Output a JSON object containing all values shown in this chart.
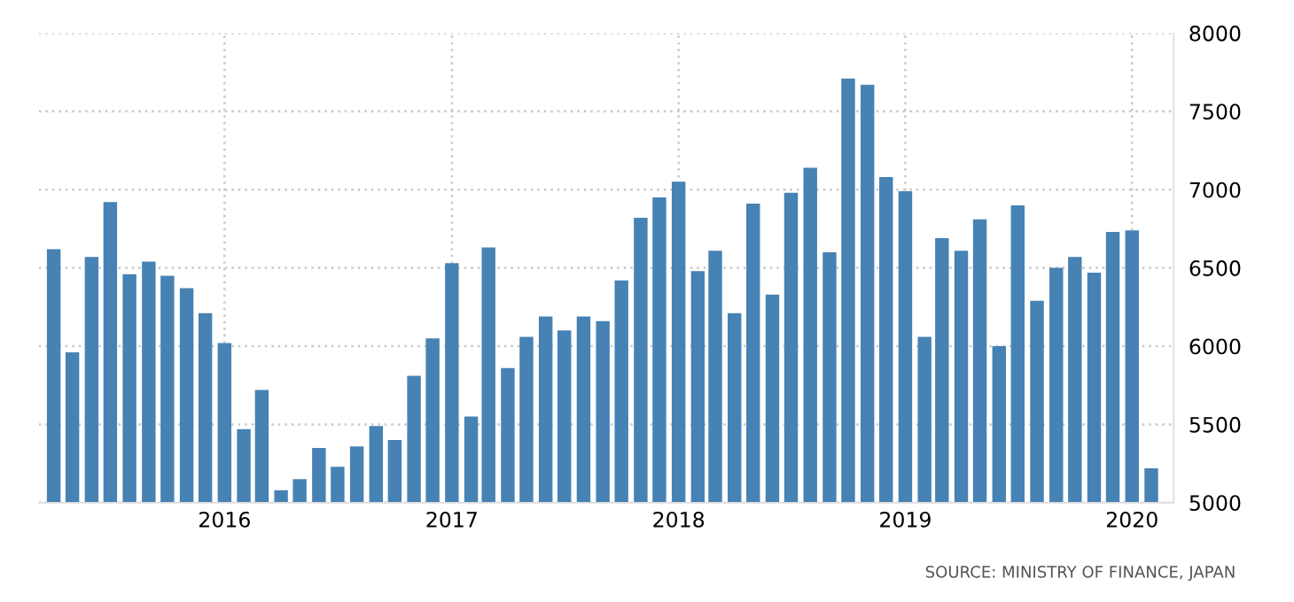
{
  "chart_data": {
    "type": "bar",
    "x": [
      "2015-04",
      "2015-05",
      "2015-06",
      "2015-07",
      "2015-08",
      "2015-09",
      "2015-10",
      "2015-11",
      "2015-12",
      "2016-01",
      "2016-02",
      "2016-03",
      "2016-04",
      "2016-05",
      "2016-06",
      "2016-07",
      "2016-08",
      "2016-09",
      "2016-10",
      "2016-11",
      "2016-12",
      "2017-01",
      "2017-02",
      "2017-03",
      "2017-04",
      "2017-05",
      "2017-06",
      "2017-07",
      "2017-08",
      "2017-09",
      "2017-10",
      "2017-11",
      "2017-12",
      "2018-01",
      "2018-02",
      "2018-03",
      "2018-04",
      "2018-05",
      "2018-06",
      "2018-07",
      "2018-08",
      "2018-09",
      "2018-10",
      "2018-11",
      "2018-12",
      "2019-01",
      "2019-02",
      "2019-03",
      "2019-04",
      "2019-05",
      "2019-06",
      "2019-07",
      "2019-08",
      "2019-09",
      "2019-10",
      "2019-11",
      "2019-12",
      "2020-01",
      "2020-02"
    ],
    "series": [
      {
        "color": "#4682b4",
        "values": [
          6620,
          5960,
          6570,
          6920,
          6460,
          6540,
          6450,
          6370,
          6210,
          6020,
          5470,
          5720,
          5080,
          5150,
          5350,
          5230,
          5360,
          5490,
          5400,
          5810,
          6050,
          6530,
          5550,
          6630,
          5860,
          6060,
          6190,
          6100,
          6190,
          6160,
          6420,
          6820,
          6950,
          7050,
          6480,
          6610,
          6210,
          6910,
          6330,
          6980,
          7140,
          6600,
          7710,
          7670,
          7080,
          6990,
          6060,
          6690,
          6610,
          6810,
          6000,
          6900,
          6290,
          6500,
          6570,
          6470,
          6730,
          6740,
          5220
        ]
      }
    ],
    "xlim": [
      "2015-03-08",
      "2020-03-08"
    ],
    "xticks": [
      "2016",
      "2017",
      "2018",
      "2019",
      "2020"
    ],
    "ylim": [
      5000,
      8000
    ],
    "yticks": [
      5000,
      5500,
      6000,
      6500,
      7000,
      7500,
      8000
    ],
    "grid": true,
    "annotations": [
      "SOURCE: MINISTRY OF FINANCE, JAPAN"
    ]
  }
}
